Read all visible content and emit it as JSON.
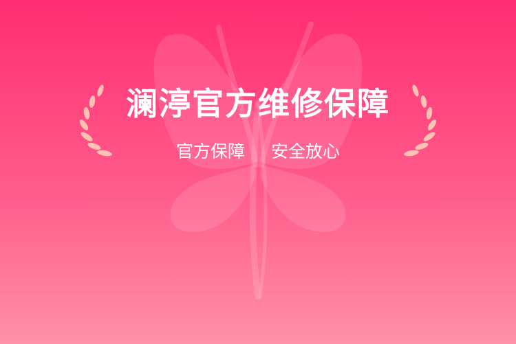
{
  "banner": {
    "title": "澜渟官方维修保障",
    "subtitle_left": "官方保障",
    "subtitle_right": "安全放心"
  },
  "colors": {
    "gradient_top": "#ff2d73",
    "gradient_bottom": "#ff90a8",
    "text": "#ffffff",
    "laurel": "#ffc1b3"
  },
  "icons": {
    "watermark": "butterfly-logo-icon",
    "left_wreath": "laurel-left-icon",
    "right_wreath": "laurel-right-icon"
  }
}
